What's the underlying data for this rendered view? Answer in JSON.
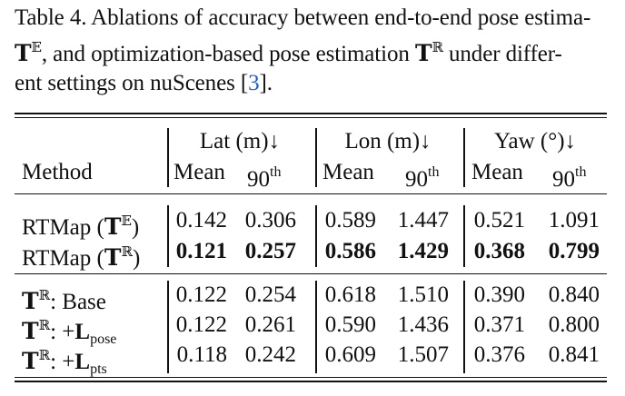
{
  "caption": {
    "line1": "Table 4.  Ablations of accuracy between end-to-end pose estima-",
    "line2_a": "T",
    "line2_a_sup": "𝔼",
    "line2_b": ", and optimization-based pose estimation ",
    "line2_c": "T",
    "line2_c_sup": "ℝ",
    "line2_d": " under differ-",
    "line3_a": "ent settings on nuScenes [",
    "line3_ref": "3",
    "line3_b": "]."
  },
  "table": {
    "groups": [
      "Lat (m)↓",
      "Lon (m)↓",
      "Yaw (°)↓"
    ],
    "method_header": "Method",
    "sub_mean": "Mean",
    "sub_90": "90",
    "sub_90_sup": "th",
    "section1": [
      {
        "method_main": "RTMap (",
        "method_T": "T",
        "method_sup": "𝔼",
        "method_end": ")",
        "bold": false,
        "values": [
          "0.142",
          "0.306",
          "0.589",
          "1.447",
          "0.521",
          "1.091"
        ]
      },
      {
        "method_main": "RTMap (",
        "method_T": "T",
        "method_sup": "ℝ",
        "method_end": ")",
        "bold": true,
        "values": [
          "0.121",
          "0.257",
          "0.586",
          "1.429",
          "0.368",
          "0.799"
        ]
      }
    ],
    "section2": [
      {
        "T": "T",
        "sup": "ℝ",
        "text": ": Base",
        "L": "",
        "sub": "",
        "values": [
          "0.122",
          "0.254",
          "0.618",
          "1.510",
          "0.390",
          "0.840"
        ]
      },
      {
        "T": "T",
        "sup": "ℝ",
        "text": ": +",
        "L": "L",
        "sub": "pose",
        "values": [
          "0.122",
          "0.261",
          "0.590",
          "1.436",
          "0.371",
          "0.800"
        ]
      },
      {
        "T": "T",
        "sup": "ℝ",
        "text": ": +",
        "L": "L",
        "sub": "pts",
        "values": [
          "0.118",
          "0.242",
          "0.609",
          "1.507",
          "0.376",
          "0.841"
        ]
      }
    ]
  }
}
